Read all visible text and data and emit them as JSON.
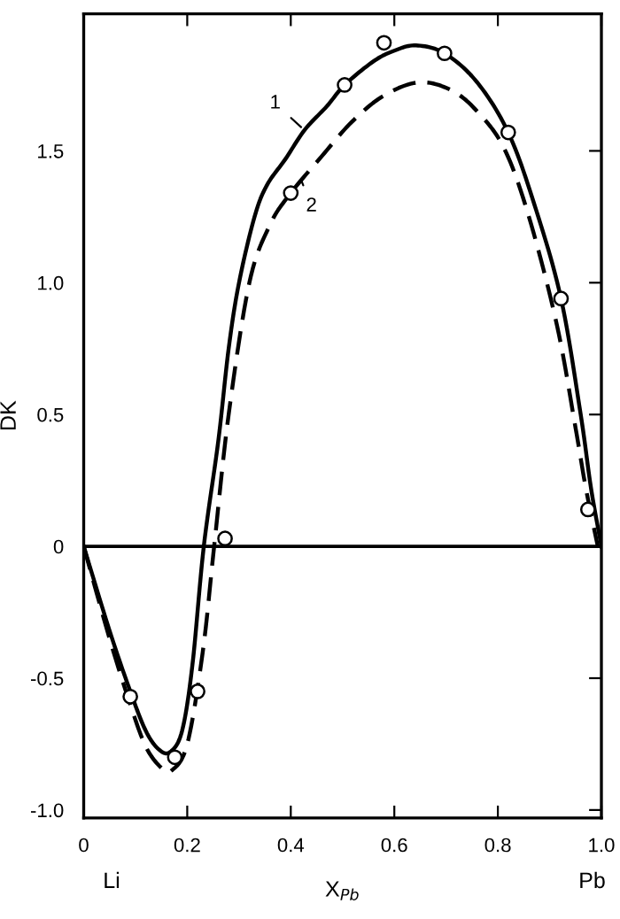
{
  "chart_data": {
    "type": "line",
    "xlabel": "X$_{Pb}$",
    "ylabel": "DK",
    "xlim": [
      0,
      1
    ],
    "ylim": [
      -1.03,
      2.02
    ],
    "xticks": [
      0,
      0.2,
      0.4,
      0.6,
      0.8,
      {
        "value": 1,
        "label": "1.0"
      }
    ],
    "yticks": [
      {
        "value": -1,
        "label": "-1.0"
      },
      {
        "value": -0.5,
        "label": "-0.5"
      },
      0,
      0.5,
      {
        "value": 1,
        "label": "1.0"
      },
      1.5
    ],
    "grid": false,
    "series": [
      {
        "color": "#000000",
        "line_style": "solid",
        "marker": "none",
        "x": [
          0,
          0.05,
          0.09,
          0.12,
          0.145,
          0.167,
          0.19,
          0.21,
          0.232,
          0.26,
          0.28,
          0.3,
          0.33,
          0.354,
          0.39,
          0.427,
          0.47,
          0.504,
          0.56,
          0.6,
          0.642,
          0.697,
          0.76,
          0.82,
          0.87,
          0.922,
          0.96,
          0.98,
          1.0
        ],
        "values": [
          0,
          -0.32,
          -0.55,
          -0.7,
          -0.77,
          -0.78,
          -0.7,
          -0.45,
          0,
          0.4,
          0.75,
          1.0,
          1.25,
          1.37,
          1.47,
          1.58,
          1.67,
          1.75,
          1.84,
          1.88,
          1.9,
          1.87,
          1.76,
          1.57,
          1.3,
          0.94,
          0.5,
          0.22,
          0
        ]
      },
      {
        "color": "#000000",
        "line_style": "dashed",
        "marker": "none",
        "x": [
          0,
          0.05,
          0.09,
          0.12,
          0.15,
          0.17,
          0.2,
          0.23,
          0.252,
          0.28,
          0.32,
          0.36,
          0.4,
          0.46,
          0.518,
          0.58,
          0.648,
          0.71,
          0.76,
          0.812,
          0.86,
          0.914,
          0.95,
          0.97,
          0.993
        ],
        "values": [
          0,
          -0.35,
          -0.6,
          -0.76,
          -0.84,
          -0.85,
          -0.75,
          -0.4,
          0,
          0.5,
          1.0,
          1.22,
          1.34,
          1.48,
          1.61,
          1.71,
          1.76,
          1.73,
          1.65,
          1.51,
          1.25,
          0.84,
          0.45,
          0.22,
          0
        ]
      },
      {
        "type": "scatter",
        "color": "#ffffff",
        "marker": "circle",
        "x": [
          0.09,
          0.176,
          0.22,
          0.273,
          0.4,
          0.504,
          0.58,
          0.697,
          0.82,
          0.922,
          0.974
        ],
        "values": [
          -0.57,
          -0.8,
          -0.55,
          0.03,
          1.34,
          1.75,
          1.91,
          1.87,
          1.57,
          0.94,
          0.14
        ]
      }
    ],
    "ref_lines": [
      {
        "axis": "y",
        "value": 0,
        "color": "#000000",
        "line_style": "solid"
      }
    ],
    "annotations": [
      {
        "text": "1",
        "x": 0.42,
        "y": 1.59
      },
      {
        "text": "2",
        "x": 0.42,
        "y": 1.39
      },
      "Li",
      "Pb"
    ]
  }
}
